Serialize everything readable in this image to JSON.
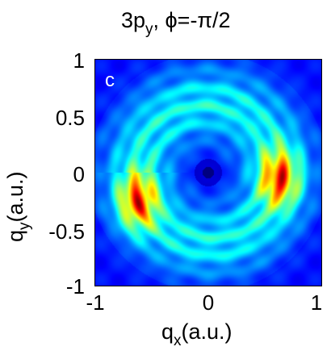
{
  "chart_data": {
    "type": "heatmap",
    "panel_label": "c",
    "title": {
      "base": "3p",
      "sub": "y",
      "rest": ", ϕ=-π/2"
    },
    "xlabel": {
      "base": "q",
      "sub": "x",
      "rest": "(a.u.)"
    },
    "ylabel": {
      "base": "q",
      "sub": "y",
      "rest": "(a.u.)"
    },
    "xlim": [
      -1,
      1
    ],
    "ylim": [
      -1,
      1
    ],
    "x_ticks": [
      "-1",
      "0",
      "1"
    ],
    "y_ticks": [
      "1",
      "0.5",
      "0",
      "-0.5",
      "-1"
    ],
    "colormap": "jet",
    "background_color": "#0b2fb8",
    "ring_radius": 0.78,
    "hotspots": [
      {
        "x": -0.62,
        "y": -0.25,
        "intensity": 1.0
      },
      {
        "x": 0.62,
        "y": -0.05,
        "intensity": 1.0
      }
    ]
  }
}
